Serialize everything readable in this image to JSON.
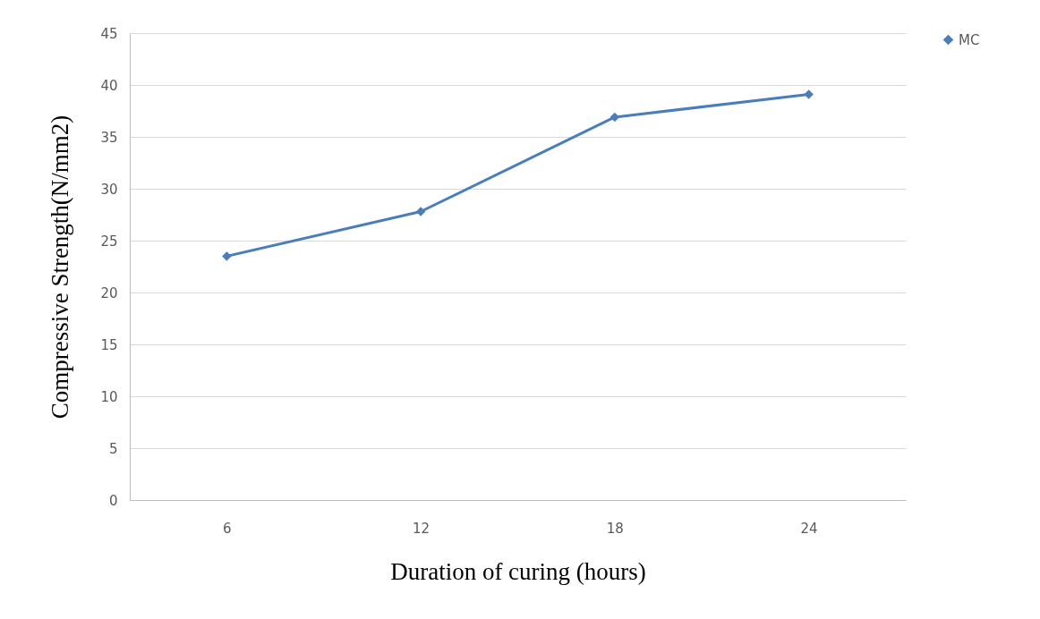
{
  "chart_data": {
    "type": "line",
    "xlabel": "Duration of curing (hours)",
    "ylabel": "Compressive Strength(N/mm2)",
    "categories": [
      "6",
      "12",
      "18",
      "24"
    ],
    "series": [
      {
        "name": "MC",
        "color": "#4a7ebb",
        "values": [
          23.5,
          27.8,
          36.9,
          39.1
        ]
      }
    ],
    "ylim": [
      0,
      45
    ],
    "yticks": [
      0,
      5,
      10,
      15,
      20,
      25,
      30,
      35,
      40,
      45
    ],
    "grid": "y",
    "legend": "right",
    "marker": "diamond",
    "line_style": "solid"
  }
}
